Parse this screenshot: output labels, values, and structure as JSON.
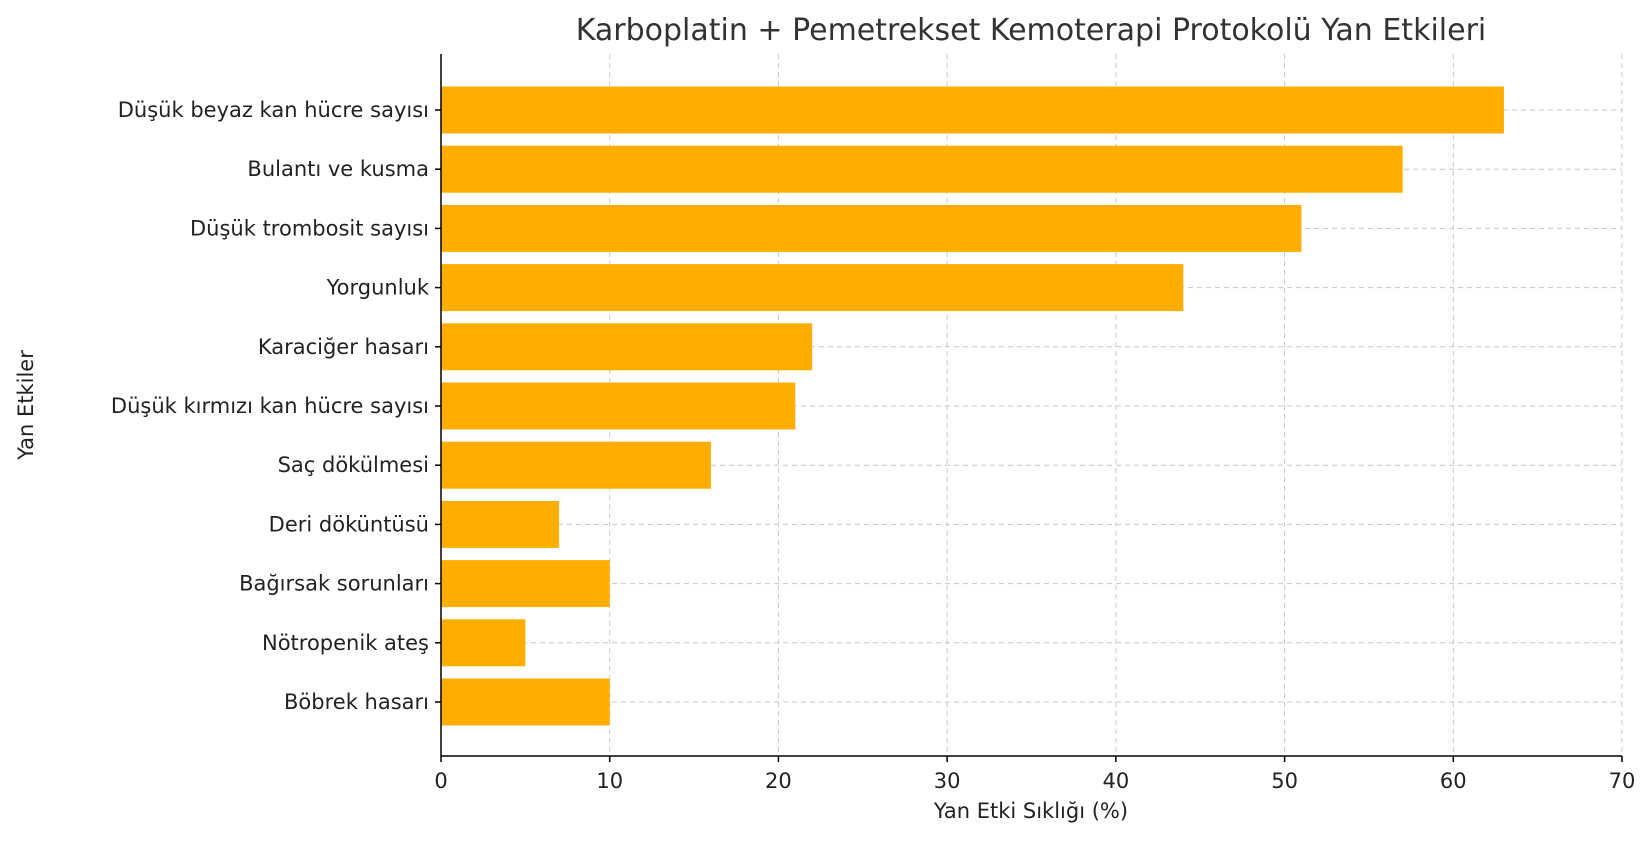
{
  "chart_data": {
    "type": "bar",
    "orientation": "horizontal",
    "title": "Karboplatin + Pemetrekset Kemoterapi Protokolü Yan Etkileri",
    "xlabel": "Yan Etki Sıklığı (%)",
    "ylabel": "Yan Etkiler",
    "xlim": [
      0,
      70
    ],
    "xticks": [
      0,
      10,
      20,
      30,
      40,
      50,
      60,
      70
    ],
    "grid": true,
    "legend": "none",
    "bar_color": "#ffae00",
    "categories": [
      "Düşük beyaz kan hücre sayısı",
      "Bulantı ve kusma",
      "Düşük trombosit sayısı",
      "Yorgunluk",
      "Karaciğer hasarı",
      "Düşük kırmızı kan hücre sayısı",
      "Saç dökülmesi",
      "Deri döküntüsü",
      "Bağırsak sorunları",
      "Nötropenik ateş",
      "Böbrek hasarı"
    ],
    "values": [
      63,
      57,
      51,
      44,
      22,
      21,
      16,
      7,
      10,
      5,
      10
    ]
  }
}
